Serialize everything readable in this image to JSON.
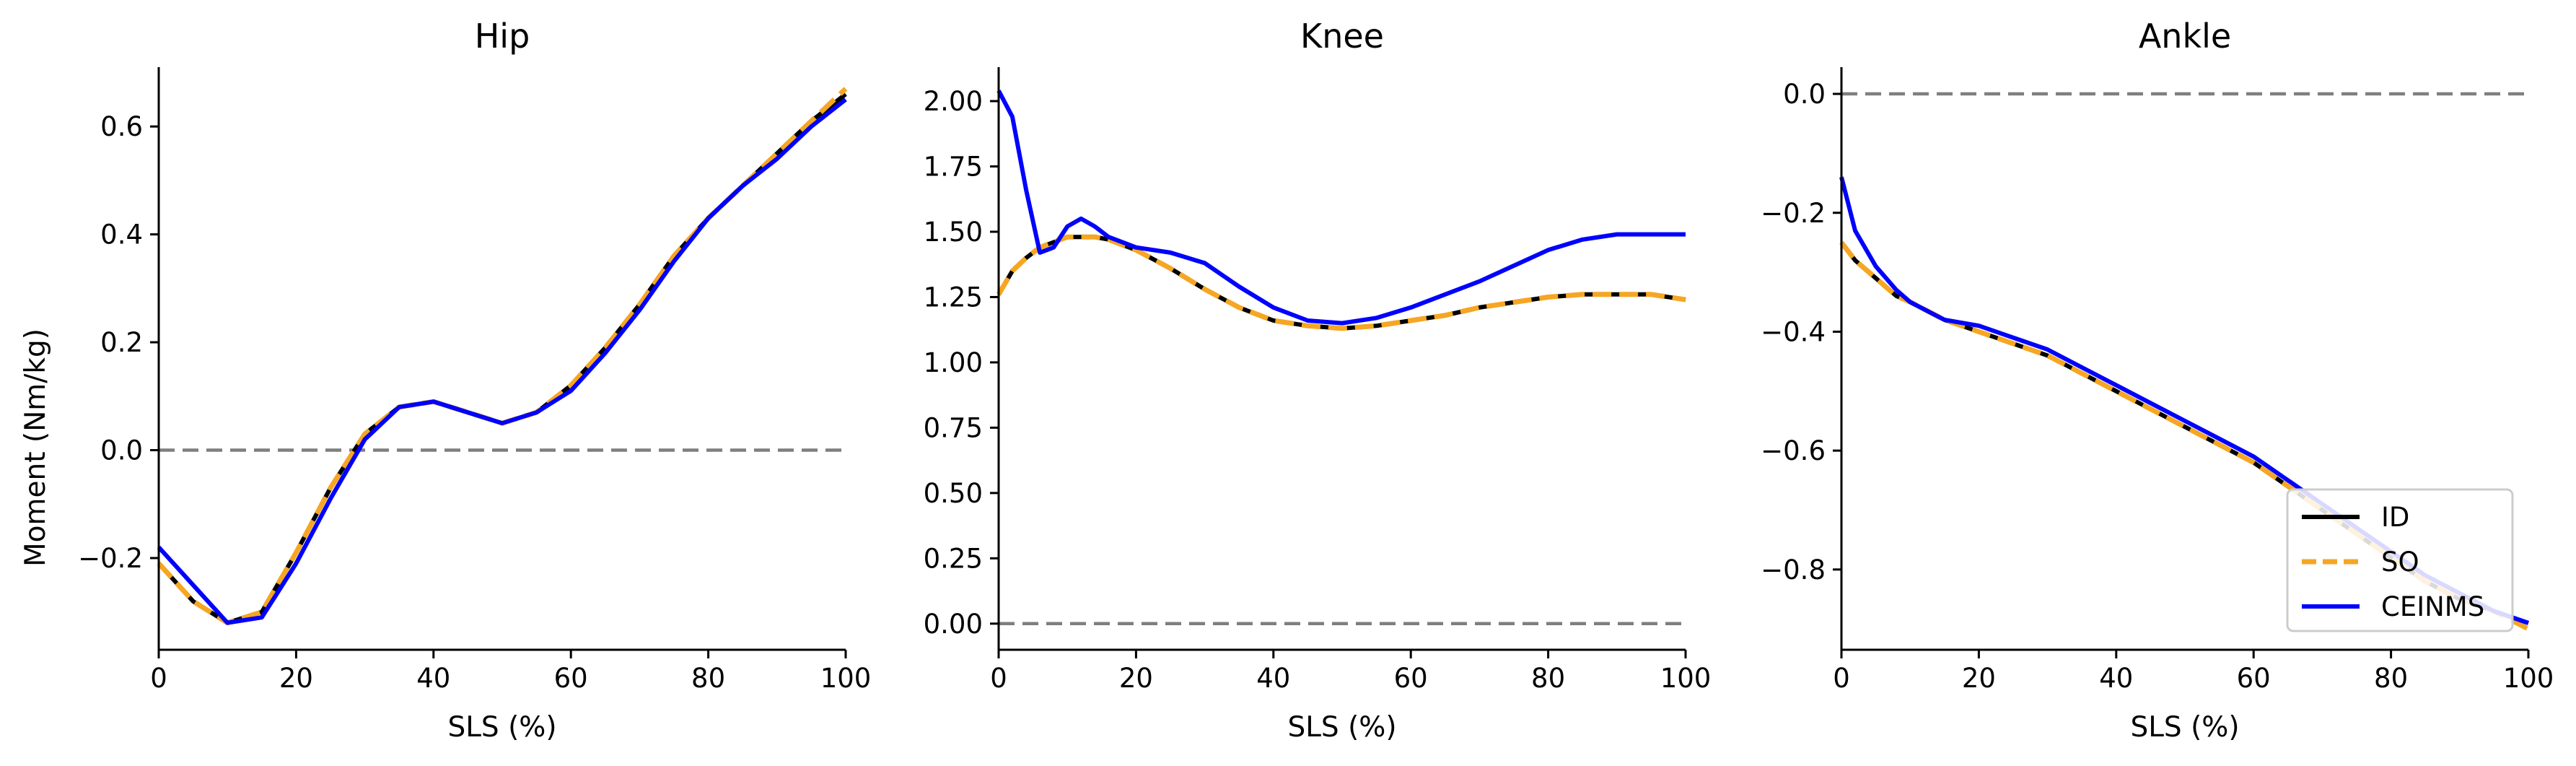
{
  "figure": {
    "ylabel": "Moment (Nm/kg)"
  },
  "legend": {
    "placement": "lower-right of Ankle panel",
    "entries": [
      "ID",
      "SO",
      "CEINMS"
    ]
  },
  "chart_data": [
    {
      "type": "line",
      "title": "Hip",
      "xlabel": "SLS (%)",
      "ylabel": "Moment (Nm/kg)",
      "xlim": [
        0,
        100
      ],
      "ylim": [
        -0.37,
        0.71
      ],
      "xticks": [
        0,
        20,
        40,
        60,
        80,
        100
      ],
      "xtick_labels": [
        "0",
        "20",
        "40",
        "60",
        "80",
        "100"
      ],
      "yticks": [
        -0.2,
        0.0,
        0.2,
        0.4,
        0.6
      ],
      "ytick_labels": [
        "−0.2",
        "0.0",
        "0.2",
        "0.4",
        "0.6"
      ],
      "reference_line": 0.0,
      "x": [
        0,
        5,
        10,
        15,
        20,
        25,
        30,
        35,
        40,
        45,
        50,
        55,
        60,
        65,
        70,
        75,
        80,
        85,
        90,
        95,
        100
      ],
      "series": [
        {
          "name": "ID",
          "color": "#000000",
          "dash": "solid",
          "values": [
            -0.21,
            -0.28,
            -0.32,
            -0.3,
            -0.19,
            -0.07,
            0.03,
            0.08,
            0.09,
            0.07,
            0.05,
            0.07,
            0.12,
            0.19,
            0.27,
            0.36,
            0.43,
            0.49,
            0.55,
            0.61,
            0.66
          ]
        },
        {
          "name": "SO",
          "color": "#f5a623",
          "dash": "dashed",
          "values": [
            -0.21,
            -0.28,
            -0.32,
            -0.3,
            -0.19,
            -0.07,
            0.03,
            0.08,
            0.09,
            0.07,
            0.05,
            0.07,
            0.12,
            0.19,
            0.27,
            0.36,
            0.43,
            0.49,
            0.55,
            0.61,
            0.67
          ]
        },
        {
          "name": "CEINMS",
          "color": "#0000ff",
          "dash": "solid",
          "values": [
            -0.18,
            -0.25,
            -0.32,
            -0.31,
            -0.21,
            -0.09,
            0.02,
            0.08,
            0.09,
            0.07,
            0.05,
            0.07,
            0.11,
            0.18,
            0.26,
            0.35,
            0.43,
            0.49,
            0.54,
            0.6,
            0.65
          ]
        }
      ]
    },
    {
      "type": "line",
      "title": "Knee",
      "xlabel": "SLS (%)",
      "xlim": [
        0,
        100
      ],
      "ylim": [
        -0.1,
        2.13
      ],
      "xticks": [
        0,
        20,
        40,
        60,
        80,
        100
      ],
      "xtick_labels": [
        "0",
        "20",
        "40",
        "60",
        "80",
        "100"
      ],
      "yticks": [
        0.0,
        0.25,
        0.5,
        0.75,
        1.0,
        1.25,
        1.5,
        1.75,
        2.0
      ],
      "ytick_labels": [
        "0.00",
        "0.25",
        "0.50",
        "0.75",
        "1.00",
        "1.25",
        "1.50",
        "1.75",
        "2.00"
      ],
      "reference_line": 0.0,
      "x": [
        0,
        2,
        4,
        6,
        8,
        10,
        12,
        14,
        16,
        20,
        25,
        30,
        35,
        40,
        45,
        50,
        55,
        60,
        65,
        70,
        75,
        80,
        85,
        90,
        95,
        100
      ],
      "series": [
        {
          "name": "ID",
          "color": "#000000",
          "dash": "solid",
          "values": [
            1.26,
            1.35,
            1.4,
            1.44,
            1.46,
            1.48,
            1.48,
            1.48,
            1.47,
            1.43,
            1.36,
            1.28,
            1.21,
            1.16,
            1.14,
            1.13,
            1.14,
            1.16,
            1.18,
            1.21,
            1.23,
            1.25,
            1.26,
            1.26,
            1.26,
            1.24
          ]
        },
        {
          "name": "SO",
          "color": "#f5a623",
          "dash": "dashed",
          "values": [
            1.26,
            1.35,
            1.4,
            1.44,
            1.46,
            1.48,
            1.48,
            1.48,
            1.47,
            1.43,
            1.36,
            1.28,
            1.21,
            1.16,
            1.14,
            1.13,
            1.14,
            1.16,
            1.18,
            1.21,
            1.23,
            1.25,
            1.26,
            1.26,
            1.26,
            1.24
          ]
        },
        {
          "name": "CEINMS",
          "color": "#0000ff",
          "dash": "solid",
          "values": [
            2.04,
            1.94,
            1.66,
            1.42,
            1.44,
            1.52,
            1.55,
            1.52,
            1.48,
            1.44,
            1.42,
            1.38,
            1.29,
            1.21,
            1.16,
            1.15,
            1.17,
            1.21,
            1.26,
            1.31,
            1.37,
            1.43,
            1.47,
            1.49,
            1.49,
            1.49
          ]
        }
      ]
    },
    {
      "type": "line",
      "title": "Ankle",
      "xlabel": "SLS (%)",
      "xlim": [
        0,
        100
      ],
      "ylim": [
        -0.935,
        0.045
      ],
      "xticks": [
        0,
        20,
        40,
        60,
        80,
        100
      ],
      "xtick_labels": [
        "0",
        "20",
        "40",
        "60",
        "80",
        "100"
      ],
      "yticks": [
        -0.8,
        -0.6,
        -0.4,
        -0.2,
        0.0
      ],
      "ytick_labels": [
        "−0.8",
        "−0.6",
        "−0.4",
        "−0.2",
        "0.0"
      ],
      "reference_line": 0.0,
      "x": [
        0,
        2,
        5,
        8,
        10,
        15,
        20,
        25,
        30,
        35,
        40,
        45,
        50,
        55,
        60,
        65,
        70,
        75,
        80,
        85,
        90,
        95,
        100
      ],
      "series": [
        {
          "name": "ID",
          "color": "#000000",
          "dash": "solid",
          "values": [
            -0.25,
            -0.28,
            -0.31,
            -0.34,
            -0.35,
            -0.38,
            -0.4,
            -0.42,
            -0.44,
            -0.47,
            -0.5,
            -0.53,
            -0.56,
            -0.59,
            -0.62,
            -0.66,
            -0.7,
            -0.74,
            -0.78,
            -0.82,
            -0.85,
            -0.87,
            -0.89
          ]
        },
        {
          "name": "SO",
          "color": "#f5a623",
          "dash": "dashed",
          "values": [
            -0.25,
            -0.28,
            -0.31,
            -0.34,
            -0.35,
            -0.38,
            -0.4,
            -0.42,
            -0.44,
            -0.47,
            -0.5,
            -0.53,
            -0.56,
            -0.59,
            -0.62,
            -0.66,
            -0.7,
            -0.74,
            -0.78,
            -0.82,
            -0.85,
            -0.87,
            -0.9
          ]
        },
        {
          "name": "CEINMS",
          "color": "#0000ff",
          "dash": "solid",
          "values": [
            -0.14,
            -0.23,
            -0.29,
            -0.33,
            -0.35,
            -0.38,
            -0.39,
            -0.41,
            -0.43,
            -0.46,
            -0.49,
            -0.52,
            -0.55,
            -0.58,
            -0.61,
            -0.65,
            -0.69,
            -0.73,
            -0.77,
            -0.81,
            -0.84,
            -0.87,
            -0.89
          ]
        }
      ]
    }
  ]
}
